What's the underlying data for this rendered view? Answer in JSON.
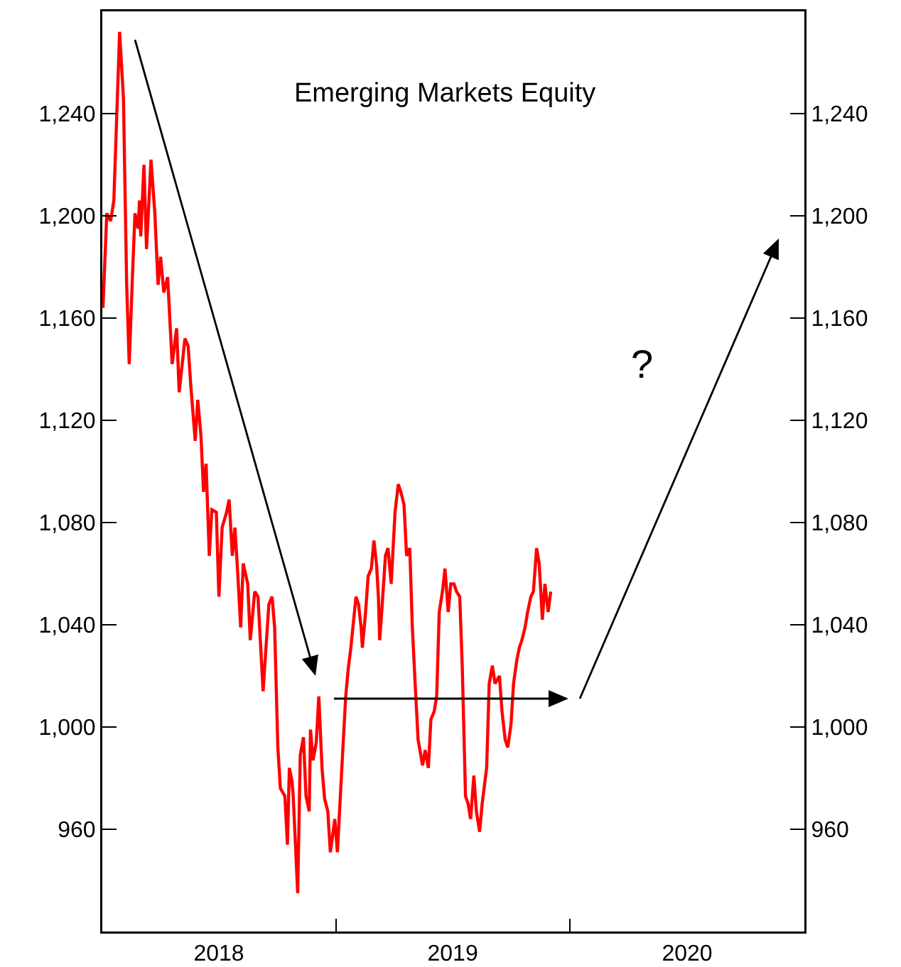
{
  "chart_data": {
    "type": "line",
    "title": "Emerging Markets Equity",
    "annotations": [
      "?"
    ],
    "x": [
      "2018-01-02",
      "2018-01-08",
      "2018-01-14",
      "2018-01-19",
      "2018-01-28",
      "2018-02-03",
      "2018-02-08",
      "2018-02-12",
      "2018-02-17",
      "2018-02-21",
      "2018-02-26",
      "2018-02-28",
      "2018-03-02",
      "2018-03-07",
      "2018-03-11",
      "2018-03-18",
      "2018-03-24",
      "2018-03-29",
      "2018-04-02",
      "2018-04-07",
      "2018-04-13",
      "2018-04-20",
      "2018-04-27",
      "2018-05-01",
      "2018-05-10",
      "2018-05-15",
      "2018-05-19",
      "2018-05-26",
      "2018-05-30",
      "2018-06-04",
      "2018-06-08",
      "2018-06-12",
      "2018-06-17",
      "2018-06-21",
      "2018-06-28",
      "2018-07-02",
      "2018-07-07",
      "2018-07-14",
      "2018-07-18",
      "2018-07-23",
      "2018-07-27",
      "2018-07-31",
      "2018-08-05",
      "2018-08-09",
      "2018-08-16",
      "2018-08-20",
      "2018-08-27",
      "2018-09-01",
      "2018-09-09",
      "2018-09-18",
      "2018-09-23",
      "2018-09-27",
      "2018-10-02",
      "2018-10-06",
      "2018-10-13",
      "2018-10-17",
      "2018-10-20",
      "2018-10-24",
      "2018-10-26",
      "2018-11-02",
      "2018-11-06",
      "2018-11-11",
      "2018-11-15",
      "2018-11-20",
      "2018-11-22",
      "2018-11-26",
      "2018-12-01",
      "2018-12-05",
      "2018-12-10",
      "2018-12-14",
      "2018-12-19",
      "2018-12-23",
      "2018-12-30",
      "2019-01-03",
      "2019-01-07",
      "2019-01-11",
      "2019-01-16",
      "2019-01-20",
      "2019-01-24",
      "2019-02-01",
      "2019-02-05",
      "2019-02-09",
      "2019-02-11",
      "2019-02-16",
      "2019-02-20",
      "2019-02-25",
      "2019-03-01",
      "2019-03-05",
      "2019-03-08",
      "2019-03-10",
      "2019-03-14",
      "2019-03-19",
      "2019-03-23",
      "2019-03-28",
      "2019-04-03",
      "2019-04-08",
      "2019-04-12",
      "2019-04-17",
      "2019-04-21",
      "2019-04-26",
      "2019-04-30",
      "2019-05-05",
      "2019-05-09",
      "2019-05-16",
      "2019-05-20",
      "2019-05-25",
      "2019-05-29",
      "2019-06-03",
      "2019-06-07",
      "2019-06-11",
      "2019-06-16",
      "2019-06-20",
      "2019-06-25",
      "2019-06-29",
      "2019-07-04",
      "2019-07-08",
      "2019-07-13",
      "2019-07-17",
      "2019-07-22",
      "2019-07-26",
      "2019-07-30",
      "2019-08-04",
      "2019-08-08",
      "2019-08-13",
      "2019-08-17",
      "2019-08-24",
      "2019-08-28",
      "2019-09-02",
      "2019-09-06",
      "2019-09-13",
      "2019-09-17",
      "2019-09-22",
      "2019-09-26",
      "2019-10-01",
      "2019-10-05",
      "2019-10-10",
      "2019-10-14",
      "2019-10-18",
      "2019-10-23",
      "2019-10-27",
      "2019-11-01",
      "2019-11-05",
      "2019-11-10",
      "2019-11-14",
      "2019-11-19",
      "2019-11-23",
      "2019-11-28",
      "2019-12-02"
    ],
    "series": [
      {
        "color": "#ff0000",
        "values": [
          1164,
          1201,
          1198,
          1206,
          1272,
          1246,
          1173,
          1142,
          1176,
          1201,
          1195,
          1206,
          1192,
          1220,
          1187,
          1222,
          1201,
          1173,
          1184,
          1170,
          1176,
          1142,
          1156,
          1131,
          1152,
          1149,
          1134,
          1112,
          1128,
          1114,
          1092,
          1103,
          1067,
          1085,
          1084,
          1051,
          1078,
          1084,
          1089,
          1067,
          1078,
          1062,
          1039,
          1064,
          1056,
          1034,
          1053,
          1051,
          1014,
          1048,
          1051,
          1039,
          992,
          976,
          973,
          954,
          984,
          979,
          973,
          935,
          989,
          996,
          973,
          967,
          999,
          987,
          994,
          1012,
          984,
          972,
          967,
          951,
          964,
          951,
          970,
          989,
          1012,
          1023,
          1031,
          1051,
          1048,
          1039,
          1031,
          1045,
          1059,
          1062,
          1073,
          1064,
          1051,
          1034,
          1048,
          1067,
          1070,
          1056,
          1084,
          1095,
          1092,
          1087,
          1067,
          1070,
          1039,
          1014,
          995,
          985,
          991,
          984,
          1003,
          1006,
          1012,
          1045,
          1053,
          1062,
          1045,
          1056,
          1056,
          1053,
          1051,
          1023,
          973,
          970,
          964,
          981,
          967,
          959,
          970,
          984,
          1017,
          1024,
          1017,
          1020,
          1006,
          995,
          992,
          1001,
          1017,
          1026,
          1031,
          1034,
          1039,
          1045,
          1051,
          1053,
          1070,
          1064,
          1042,
          1056,
          1045,
          1053
        ]
      }
    ],
    "xlim": [
      "2018-01-01",
      "2021-01-01"
    ],
    "xticks": [
      {
        "value": "2018-07-02",
        "label": "2018"
      },
      {
        "value": "2019-01-01",
        "label": null
      },
      {
        "value": "2019-07-02",
        "label": "2019"
      },
      {
        "value": "2020-01-01",
        "label": null
      },
      {
        "value": "2020-07-02",
        "label": "2020"
      }
    ],
    "ylim": [
      920,
      1280
    ],
    "yticks": [
      960,
      {
        "value": 1000,
        "label": "1,000"
      },
      {
        "value": 1040,
        "label": "1,040"
      },
      {
        "value": 1080,
        "label": "1,080"
      },
      {
        "value": 1120,
        "label": "1,120"
      },
      {
        "value": 1160,
        "label": "1,160"
      },
      {
        "value": 1200,
        "label": "1,200"
      },
      {
        "value": 1240,
        "label": "1,240"
      }
    ],
    "y2lim": [
      920,
      1280
    ],
    "y2ticks": [
      960,
      {
        "value": 1000,
        "label": "1,000"
      },
      {
        "value": 1040,
        "label": "1,040"
      },
      {
        "value": 1080,
        "label": "1,080"
      },
      {
        "value": 1120,
        "label": "1,120"
      },
      {
        "value": 1160,
        "label": "1,160"
      },
      {
        "value": 1200,
        "label": "1,200"
      },
      {
        "value": 1240,
        "label": "1,240"
      }
    ],
    "grid": false,
    "marker": "none",
    "line_style": "solid"
  }
}
